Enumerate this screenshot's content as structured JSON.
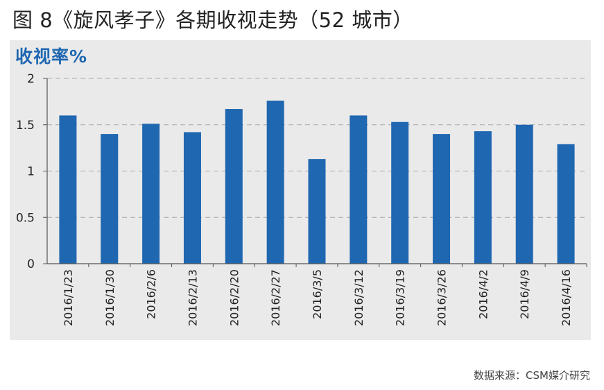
{
  "title": "图 8《旋风孝子》各期收视走势（52 城市）",
  "source": "数据来源：CSM媒介研究",
  "colors": {
    "bar": "#1f67b1",
    "panel": "#eaeaea",
    "grid": "#a8a8a8",
    "axis": "#555555",
    "ylabel": "#1f67b1"
  },
  "chart_data": {
    "type": "bar",
    "ylabel": "收视率%",
    "xlabel": "",
    "ylim": [
      0,
      2
    ],
    "yticks": [
      0,
      0.5,
      1,
      1.5,
      2
    ],
    "grid": true,
    "categories": [
      "2016/1/23",
      "2016/1/30",
      "2016/2/6",
      "2016/2/13",
      "2016/2/20",
      "2016/2/27",
      "2016/3/5",
      "2016/3/12",
      "2016/3/19",
      "2016/3/26",
      "2016/4/2",
      "2016/4/9",
      "2016/4/16"
    ],
    "values": [
      1.6,
      1.4,
      1.51,
      1.42,
      1.67,
      1.76,
      1.13,
      1.6,
      1.53,
      1.4,
      1.43,
      1.5,
      1.29
    ]
  }
}
